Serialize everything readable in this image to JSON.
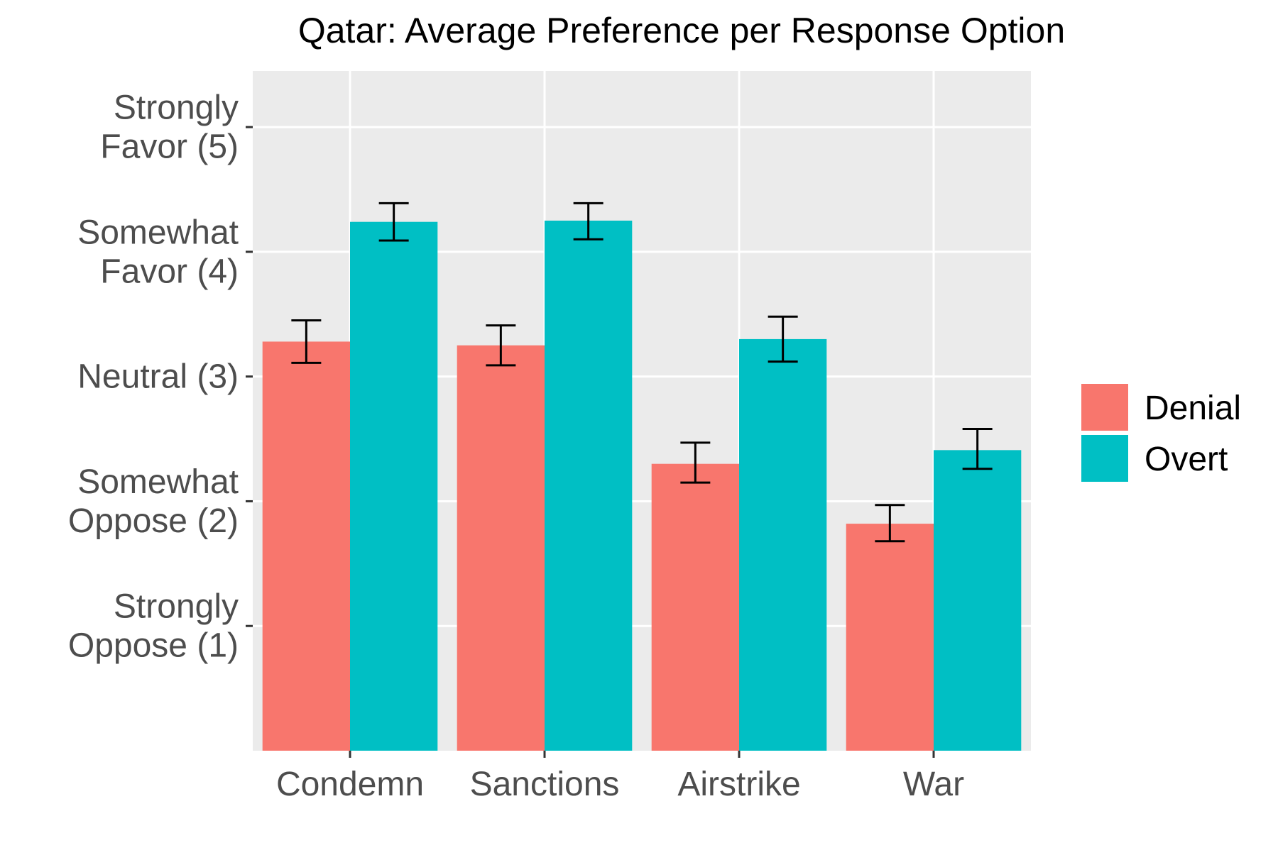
{
  "chart_data": {
    "type": "bar",
    "title": "Qatar: Average Preference per Response Option",
    "xlabel": "",
    "ylabel": "",
    "categories": [
      "Condemn",
      "Sanctions",
      "Airstrike",
      "War"
    ],
    "series": [
      {
        "name": "Denial",
        "color": "#F8766D",
        "values": [
          3.28,
          3.25,
          2.3,
          1.82
        ],
        "error_low": [
          3.11,
          3.09,
          2.15,
          1.68
        ],
        "error_high": [
          3.45,
          3.41,
          2.47,
          1.97
        ]
      },
      {
        "name": "Overt",
        "color": "#00BFC4",
        "values": [
          4.24,
          4.25,
          3.3,
          2.41
        ],
        "error_low": [
          4.09,
          4.1,
          3.12,
          2.26
        ],
        "error_high": [
          4.39,
          4.39,
          3.48,
          2.58
        ]
      }
    ],
    "ylim": [
      0,
      5.45
    ],
    "yticks": [
      {
        "value": 1,
        "label": [
          "Strongly",
          "Oppose (1)"
        ]
      },
      {
        "value": 2,
        "label": [
          "Somewhat",
          "Oppose (2)"
        ]
      },
      {
        "value": 3,
        "label": [
          "Neutral (3)"
        ]
      },
      {
        "value": 4,
        "label": [
          "Somewhat",
          "Favor (4)"
        ]
      },
      {
        "value": 5,
        "label": [
          "Strongly",
          "Favor (5)"
        ]
      }
    ],
    "grid": true,
    "panel_background": "#EBEBEB",
    "grid_color": "#FFFFFF",
    "legend_position": "right"
  }
}
